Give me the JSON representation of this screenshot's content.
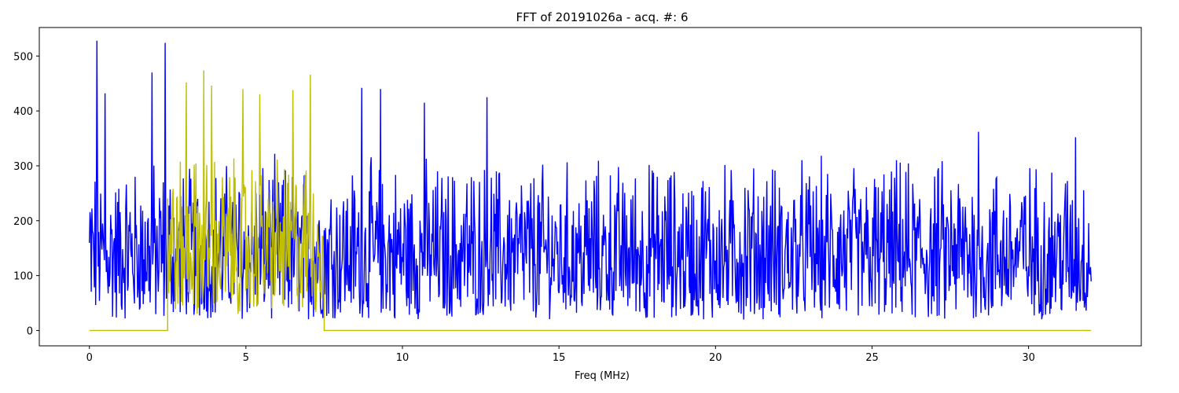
{
  "chart_data": {
    "type": "line",
    "title": "FFT of 20191026a - acq. #: 6",
    "xlabel": "Freq (MHz)",
    "ylabel": "",
    "xlim": [
      -1.6,
      33.6
    ],
    "ylim": [
      -28,
      552
    ],
    "x_ticks": [
      0,
      5,
      10,
      15,
      20,
      25,
      30
    ],
    "y_ticks": [
      0,
      100,
      200,
      300,
      400,
      500
    ],
    "grid": false,
    "legend": "none",
    "series": [
      {
        "color": "#0000ff",
        "description_values": {
          "x_range": [
            0,
            32
          ],
          "typical_range": [
            20,
            330
          ],
          "peaks": [
            {
              "x": 0.25,
              "y": 528
            },
            {
              "x": 2.42,
              "y": 524
            },
            {
              "x": 2.0,
              "y": 470
            },
            {
              "x": 8.7,
              "y": 442
            },
            {
              "x": 9.3,
              "y": 440
            },
            {
              "x": 0.5,
              "y": 432
            },
            {
              "x": 12.7,
              "y": 425
            },
            {
              "x": 10.7,
              "y": 415
            },
            {
              "x": 28.4,
              "y": 362
            },
            {
              "x": 31.5,
              "y": 352
            }
          ]
        }
      },
      {
        "color": "#bfbf00",
        "description_values": {
          "step_low_before": 2.5,
          "band": [
            2.5,
            7.5
          ],
          "baseline": 0,
          "typical_range": [
            30,
            340
          ],
          "peaks": [
            {
              "x": 3.65,
              "y": 474
            },
            {
              "x": 7.05,
              "y": 466
            },
            {
              "x": 3.1,
              "y": 452
            },
            {
              "x": 3.9,
              "y": 446
            },
            {
              "x": 6.5,
              "y": 438
            },
            {
              "x": 4.9,
              "y": 440
            },
            {
              "x": 5.45,
              "y": 430
            }
          ]
        }
      }
    ]
  }
}
